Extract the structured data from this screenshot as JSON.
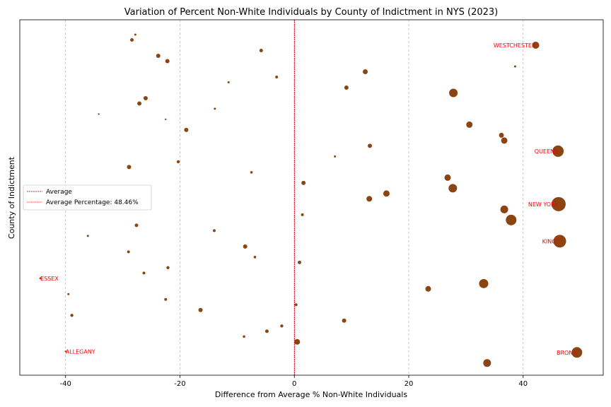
{
  "chart_data": {
    "type": "scatter",
    "title": "Variation of Percent Non-White Individuals by County of Indictment in NYS (2023)",
    "xlabel": "Difference from Average % Non-White Individuals",
    "ylabel": "County of Indictment",
    "xlim": [
      -48,
      54
    ],
    "ylim": [
      -0.8,
      66.3
    ],
    "xticks": [
      -40,
      -20,
      0,
      20,
      40
    ],
    "grid": "x-dashed",
    "point_color": "#8B4513",
    "annotation_color": "#ff0000",
    "average_line": {
      "x": 0,
      "color": "#8B0000"
    },
    "legend": {
      "placement": "center-left",
      "entries": [
        "Average",
        "Average Percentage: 48.46%"
      ]
    },
    "points": [
      {
        "x": 33.7,
        "y": 1.5,
        "s": 5.5
      },
      {
        "x": 49.4,
        "y": 3.5,
        "s": 7.5,
        "label": "BRONX"
      },
      {
        "x": -40.0,
        "y": 3.7,
        "s": 1.2,
        "label": "ALLEGANY"
      },
      {
        "x": 0.5,
        "y": 5.5,
        "s": 4.0
      },
      {
        "x": -8.8,
        "y": 6.5,
        "s": 1.8
      },
      {
        "x": -4.8,
        "y": 7.5,
        "s": 2.5
      },
      {
        "x": -2.2,
        "y": 8.5,
        "s": 2.2
      },
      {
        "x": 8.7,
        "y": 9.5,
        "s": 3.0
      },
      {
        "x": -38.9,
        "y": 10.5,
        "s": 2.2
      },
      {
        "x": -16.4,
        "y": 11.5,
        "s": 3.0
      },
      {
        "x": 0.3,
        "y": 12.5,
        "s": 2.0
      },
      {
        "x": -22.5,
        "y": 13.5,
        "s": 2.0
      },
      {
        "x": -39.5,
        "y": 14.5,
        "s": 1.5
      },
      {
        "x": 23.4,
        "y": 15.5,
        "s": 4.0
      },
      {
        "x": 33.1,
        "y": 16.5,
        "s": 6.5
      },
      {
        "x": -44.4,
        "y": 17.5,
        "s": 1.5,
        "label": "ESSEX"
      },
      {
        "x": -26.3,
        "y": 18.5,
        "s": 2.0
      },
      {
        "x": -22.1,
        "y": 19.5,
        "s": 2.2
      },
      {
        "x": 0.9,
        "y": 20.5,
        "s": 2.5
      },
      {
        "x": -6.9,
        "y": 21.5,
        "s": 1.8
      },
      {
        "x": -29.0,
        "y": 22.5,
        "s": 2.0
      },
      {
        "x": -8.6,
        "y": 23.5,
        "s": 3.0
      },
      {
        "x": 46.4,
        "y": 24.5,
        "s": 9.0,
        "label": "KINGS"
      },
      {
        "x": -36.1,
        "y": 25.5,
        "s": 1.5
      },
      {
        "x": -14.0,
        "y": 26.5,
        "s": 2.0
      },
      {
        "x": -27.6,
        "y": 27.5,
        "s": 2.5
      },
      {
        "x": 37.9,
        "y": 28.5,
        "s": 7.5
      },
      {
        "x": 1.4,
        "y": 29.5,
        "s": 2.0
      },
      {
        "x": 36.7,
        "y": 30.5,
        "s": 5.5
      },
      {
        "x": 46.2,
        "y": 31.5,
        "s": 10.0,
        "label": "NEW YORK"
      },
      {
        "x": 13.1,
        "y": 32.5,
        "s": 4.0
      },
      {
        "x": 16.1,
        "y": 33.5,
        "s": 4.5
      },
      {
        "x": 27.7,
        "y": 34.5,
        "s": 6.0
      },
      {
        "x": 1.6,
        "y": 35.5,
        "s": 3.0
      },
      {
        "x": 26.8,
        "y": 36.5,
        "s": 4.5
      },
      {
        "x": -7.5,
        "y": 37.5,
        "s": 1.8
      },
      {
        "x": -28.9,
        "y": 38.5,
        "s": 3.0
      },
      {
        "x": -20.3,
        "y": 39.5,
        "s": 2.2
      },
      {
        "x": 7.1,
        "y": 40.5,
        "s": 1.5
      },
      {
        "x": 46.1,
        "y": 41.5,
        "s": 8.0,
        "label": "QUEENS"
      },
      {
        "x": 13.2,
        "y": 42.5,
        "s": 3.0
      },
      {
        "x": 36.7,
        "y": 43.5,
        "s": 4.5
      },
      {
        "x": 36.2,
        "y": 44.5,
        "s": 3.5
      },
      {
        "x": -18.9,
        "y": 45.5,
        "s": 3.0
      },
      {
        "x": 30.6,
        "y": 46.5,
        "s": 4.5
      },
      {
        "x": -22.5,
        "y": 47.5,
        "s": 1.2
      },
      {
        "x": -34.2,
        "y": 48.5,
        "s": 1.2
      },
      {
        "x": -13.9,
        "y": 49.5,
        "s": 1.5
      },
      {
        "x": -27.1,
        "y": 50.5,
        "s": 3.0
      },
      {
        "x": -26.0,
        "y": 51.5,
        "s": 3.0
      },
      {
        "x": 27.8,
        "y": 52.5,
        "s": 6.0
      },
      {
        "x": 9.1,
        "y": 53.5,
        "s": 3.0
      },
      {
        "x": -11.5,
        "y": 54.5,
        "s": 1.5
      },
      {
        "x": -3.1,
        "y": 55.5,
        "s": 2.0
      },
      {
        "x": 12.4,
        "y": 56.5,
        "s": 3.5
      },
      {
        "x": 38.6,
        "y": 57.5,
        "s": 1.5
      },
      {
        "x": -22.2,
        "y": 58.5,
        "s": 3.0
      },
      {
        "x": -23.8,
        "y": 59.5,
        "s": 3.0
      },
      {
        "x": -5.8,
        "y": 60.5,
        "s": 2.5
      },
      {
        "x": 42.2,
        "y": 61.5,
        "s": 5.0,
        "label": "WESTCHESTER"
      },
      {
        "x": -28.4,
        "y": 62.5,
        "s": 2.5
      },
      {
        "x": -27.8,
        "y": 63.5,
        "s": 1.5
      }
    ]
  }
}
